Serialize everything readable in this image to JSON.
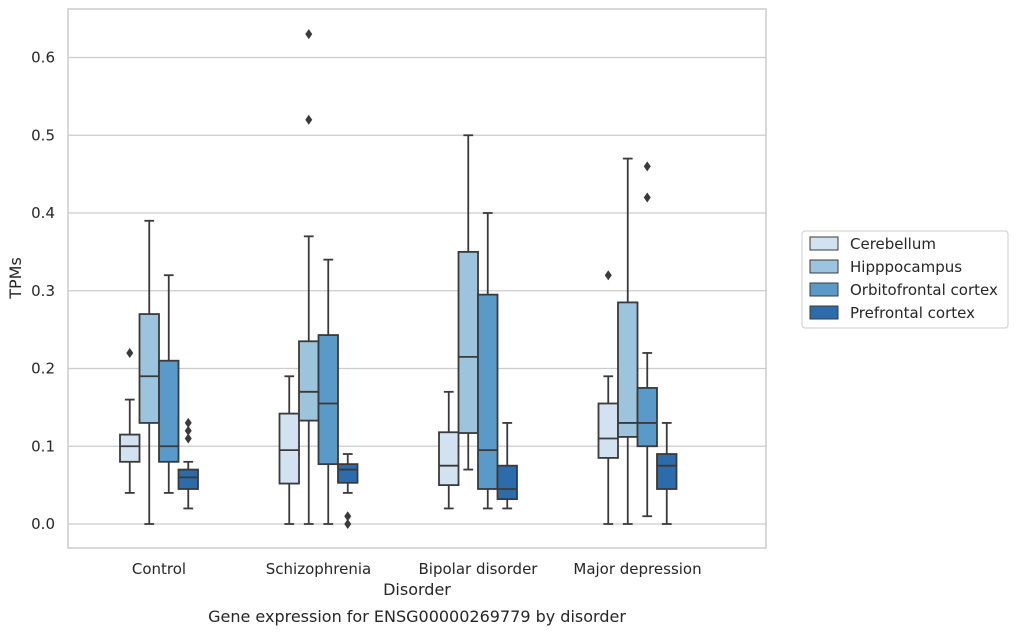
{
  "chart_data": {
    "type": "box",
    "xlabel": "Disorder",
    "ylabel": "TPMs",
    "caption": "Gene expression for ENSG00000269779 by disorder",
    "ylim": [
      -0.03,
      0.665
    ],
    "yticks": [
      "0.0",
      "0.1",
      "0.2",
      "0.3",
      "0.4",
      "0.5",
      "0.6"
    ],
    "grid": "horizontal",
    "legend_position": "right",
    "categories": [
      "Control",
      "Schizophrenia",
      "Bipolar disorder",
      "Major depression"
    ],
    "series": [
      {
        "name": "Cerebellum",
        "color": "#d3e2f1",
        "boxes": [
          {
            "whislo": 0.04,
            "q1": 0.08,
            "med": 0.1,
            "q3": 0.115,
            "whishi": 0.16,
            "fliers": [
              0.22
            ]
          },
          {
            "whislo": 0.0,
            "q1": 0.052,
            "med": 0.095,
            "q3": 0.142,
            "whishi": 0.19,
            "fliers": []
          },
          {
            "whislo": 0.02,
            "q1": 0.05,
            "med": 0.075,
            "q3": 0.118,
            "whishi": 0.17,
            "fliers": []
          },
          {
            "whislo": 0.0,
            "q1": 0.085,
            "med": 0.11,
            "q3": 0.155,
            "whishi": 0.19,
            "fliers": [
              0.32
            ]
          }
        ]
      },
      {
        "name": "Hipppocampus",
        "color": "#9dc4dd",
        "boxes": [
          {
            "whislo": 0.0,
            "q1": 0.13,
            "med": 0.19,
            "q3": 0.27,
            "whishi": 0.39,
            "fliers": []
          },
          {
            "whislo": 0.0,
            "q1": 0.133,
            "med": 0.17,
            "q3": 0.235,
            "whishi": 0.37,
            "fliers": [
              0.52,
              0.63
            ]
          },
          {
            "whislo": 0.07,
            "q1": 0.117,
            "med": 0.215,
            "q3": 0.35,
            "whishi": 0.5,
            "fliers": []
          },
          {
            "whislo": 0.0,
            "q1": 0.112,
            "med": 0.13,
            "q3": 0.285,
            "whishi": 0.47,
            "fliers": []
          }
        ]
      },
      {
        "name": "Orbitofrontal cortex",
        "color": "#5a9ac8",
        "boxes": [
          {
            "whislo": 0.04,
            "q1": 0.08,
            "med": 0.1,
            "q3": 0.21,
            "whishi": 0.32,
            "fliers": []
          },
          {
            "whislo": 0.0,
            "q1": 0.077,
            "med": 0.155,
            "q3": 0.243,
            "whishi": 0.34,
            "fliers": []
          },
          {
            "whislo": 0.02,
            "q1": 0.045,
            "med": 0.095,
            "q3": 0.295,
            "whishi": 0.4,
            "fliers": []
          },
          {
            "whislo": 0.01,
            "q1": 0.1,
            "med": 0.13,
            "q3": 0.175,
            "whishi": 0.22,
            "fliers": [
              0.42,
              0.46
            ]
          }
        ]
      },
      {
        "name": "Prefrontal cortex",
        "color": "#2c6cab",
        "boxes": [
          {
            "whislo": 0.02,
            "q1": 0.045,
            "med": 0.06,
            "q3": 0.07,
            "whishi": 0.08,
            "fliers": [
              0.11,
              0.12,
              0.13
            ]
          },
          {
            "whislo": 0.04,
            "q1": 0.053,
            "med": 0.07,
            "q3": 0.077,
            "whishi": 0.09,
            "fliers": [
              0.0,
              0.01
            ]
          },
          {
            "whislo": 0.02,
            "q1": 0.032,
            "med": 0.045,
            "q3": 0.075,
            "whishi": 0.13,
            "fliers": []
          },
          {
            "whislo": 0.0,
            "q1": 0.045,
            "med": 0.075,
            "q3": 0.09,
            "whishi": 0.13,
            "fliers": []
          }
        ]
      }
    ]
  }
}
